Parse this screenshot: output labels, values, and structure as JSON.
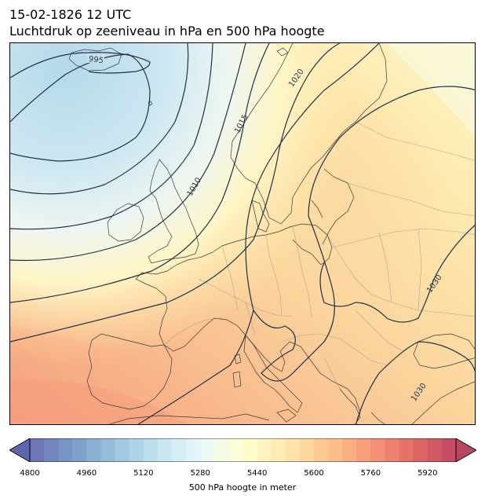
{
  "header": {
    "date_line": "15-02-1826 12 UTC",
    "title_line": "Luchtdruk op zeeniveau in hPa en 500 hPa hoogte"
  },
  "map": {
    "isobar_labels": [
      "995",
      "1010",
      "1015",
      "1020",
      "1030",
      "1030"
    ],
    "isobar_color": "#1f3149",
    "coastline_color": "#3a3a3a",
    "border_color": "#9a9a9a"
  },
  "colorbar": {
    "min": 4800,
    "max": 6000,
    "step": 40,
    "ticks": [
      "4800",
      "4960",
      "5120",
      "5280",
      "5440",
      "5600",
      "5760",
      "5920"
    ],
    "label": "500 hPa hoogte in meter",
    "colormap": "RdYlBu_r"
  }
}
